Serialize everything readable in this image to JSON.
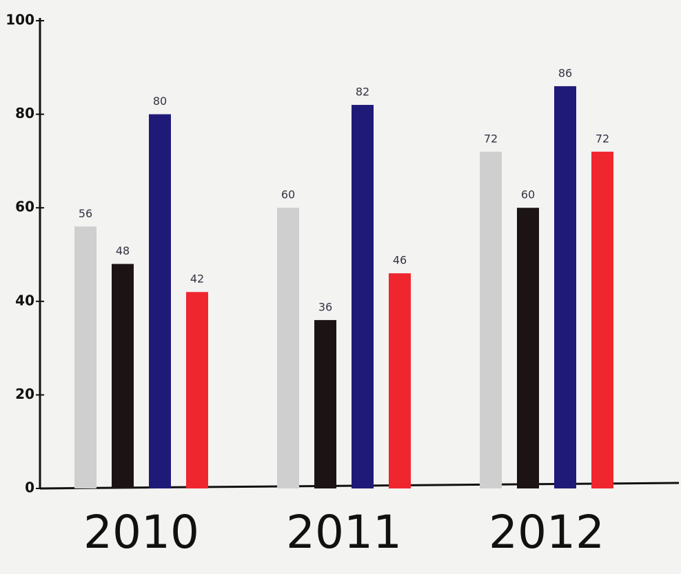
{
  "chart_data": {
    "type": "bar",
    "categories": [
      "2010",
      "2011",
      "2012"
    ],
    "series": [
      {
        "color": "#cfcfcf",
        "values": [
          56,
          60,
          72
        ]
      },
      {
        "color": "#1c1414",
        "values": [
          48,
          36,
          60
        ]
      },
      {
        "color": "#1f1a78",
        "values": [
          80,
          82,
          86
        ]
      },
      {
        "color": "#f0262f",
        "values": [
          42,
          46,
          72
        ]
      }
    ],
    "ylim": [
      0,
      100
    ],
    "yticks": [
      0,
      20,
      40,
      60,
      80,
      100
    ],
    "grid": false
  }
}
